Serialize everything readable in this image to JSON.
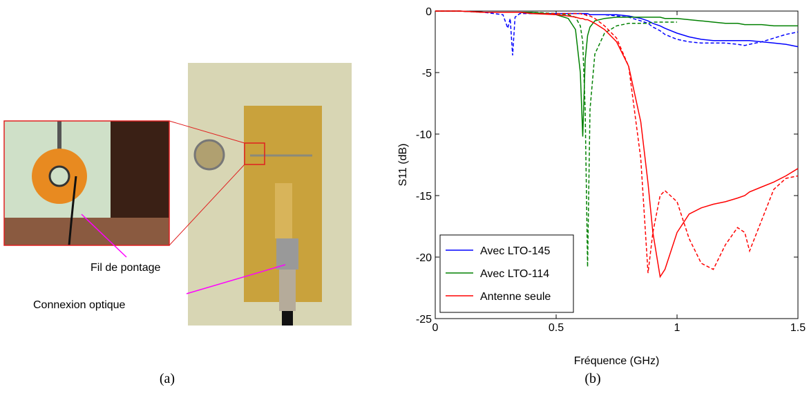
{
  "figure": {
    "photo_labels": [
      "Fil de pontage",
      "Connexion optique"
    ],
    "caption_a": "(a)",
    "caption_b": "(b)"
  },
  "chart_data": {
    "type": "line",
    "x_label": "Fréquence (GHz)",
    "y_label": "S11 (dB)",
    "x": [
      0,
      0.1,
      0.2,
      0.28,
      0.3,
      0.31,
      0.32,
      0.33,
      0.35,
      0.4,
      0.5,
      0.55,
      0.58,
      0.6,
      0.61,
      0.62,
      0.63,
      0.64,
      0.66,
      0.7,
      0.75,
      0.8,
      0.85,
      0.88,
      0.9,
      0.93,
      0.95,
      1.0,
      1.05,
      1.1,
      1.15,
      1.2,
      1.25,
      1.28,
      1.3,
      1.35,
      1.4,
      1.45,
      1.5
    ],
    "series": [
      {
        "name": "Avec LTO-145",
        "color": "#0000ff",
        "values": [
          0,
          0,
          -0.1,
          -0.1,
          -0.1,
          -0.1,
          -0.1,
          -0.1,
          -0.1,
          -0.2,
          -0.2,
          -0.2,
          -0.2,
          -0.2,
          -0.2,
          -0.2,
          -0.2,
          -0.3,
          -0.3,
          -0.3,
          -0.3,
          -0.4,
          -0.6,
          -0.8,
          -1.0,
          -1.2,
          -1.4,
          -1.8,
          -2.1,
          -2.3,
          -2.4,
          -2.4,
          -2.4,
          -2.4,
          -2.4,
          -2.5,
          -2.6,
          -2.7,
          -2.9
        ],
        "dashed_values": [
          0,
          0,
          -0.1,
          -0.3,
          -1.4,
          -0.6,
          -3.6,
          -0.5,
          -0.2,
          -0.2,
          -0.2,
          -0.2,
          -0.2,
          -0.2,
          -0.2,
          -0.3,
          -0.3,
          -0.3,
          -0.3,
          -0.3,
          -0.4,
          -0.5,
          -0.8,
          -1.0,
          -1.3,
          -1.6,
          -1.9,
          -2.3,
          -2.5,
          -2.6,
          -2.6,
          -2.6,
          -2.7,
          -2.8,
          -2.7,
          -2.5,
          -2.2,
          -1.9,
          -1.7
        ]
      },
      {
        "name": "Avec LTO-114",
        "color": "#008000",
        "values": [
          0,
          0,
          -0.1,
          -0.1,
          -0.1,
          -0.1,
          -0.1,
          -0.1,
          -0.1,
          -0.1,
          -0.3,
          -0.6,
          -1.5,
          -5,
          -10.2,
          -4,
          -2,
          -1.3,
          -0.8,
          -0.6,
          -0.5,
          -0.5,
          -0.5,
          -0.5,
          -0.5,
          -0.5,
          -0.6,
          -0.6,
          -0.7,
          -0.8,
          -0.9,
          -1.0,
          -1.0,
          -1.1,
          -1.1,
          -1.1,
          -1.2,
          -1.2,
          -1.2
        ],
        "dashed_values": [
          0,
          0,
          -0.1,
          -0.1,
          -0.1,
          -0.1,
          -0.1,
          -0.1,
          -0.1,
          -0.1,
          -0.2,
          -0.3,
          -0.5,
          -1.2,
          -2.5,
          -8,
          -20.8,
          -8,
          -3.5,
          -1.8,
          -1.2,
          -1.0,
          -1.0,
          -1.0,
          -0.9,
          -0.9,
          -0.9,
          -0.9,
          null,
          null,
          null,
          null,
          null,
          null,
          null,
          null,
          null,
          null,
          null
        ]
      },
      {
        "name": "Antenne seule",
        "color": "#ff0000",
        "values": [
          0,
          0,
          -0.1,
          -0.1,
          -0.1,
          -0.1,
          -0.1,
          -0.1,
          -0.1,
          -0.2,
          -0.3,
          -0.4,
          -0.5,
          -0.6,
          -0.6,
          -0.7,
          -0.7,
          -0.8,
          -1.0,
          -1.5,
          -2.5,
          -4.5,
          -9,
          -14,
          -18,
          -21.6,
          -21,
          -18,
          -16.5,
          -16,
          -15.7,
          -15.5,
          -15.2,
          -15,
          -14.7,
          -14.3,
          -13.9,
          -13.4,
          -12.8
        ],
        "dashed_values": [
          0,
          0,
          -0.1,
          -0.1,
          -0.1,
          -0.1,
          -0.1,
          -0.1,
          -0.1,
          -0.2,
          -0.2,
          -0.2,
          -0.2,
          -0.2,
          -0.3,
          -0.3,
          -0.4,
          -0.4,
          -0.6,
          -1.2,
          -2.2,
          -4.5,
          -12,
          -21.3,
          -18,
          -15,
          -14.6,
          -15.5,
          -18.5,
          -20.5,
          -21.0,
          -19,
          -17.6,
          -18,
          -19.5,
          -17,
          -14.5,
          -13.6,
          -13.4
        ]
      }
    ],
    "xlim": [
      0,
      1.5
    ],
    "xticks": [
      0,
      0.5,
      1,
      1.5
    ],
    "ylim": [
      -25,
      0
    ],
    "yticks": [
      0,
      -5,
      -10,
      -15,
      -20,
      -25
    ],
    "legend": "lower left"
  }
}
